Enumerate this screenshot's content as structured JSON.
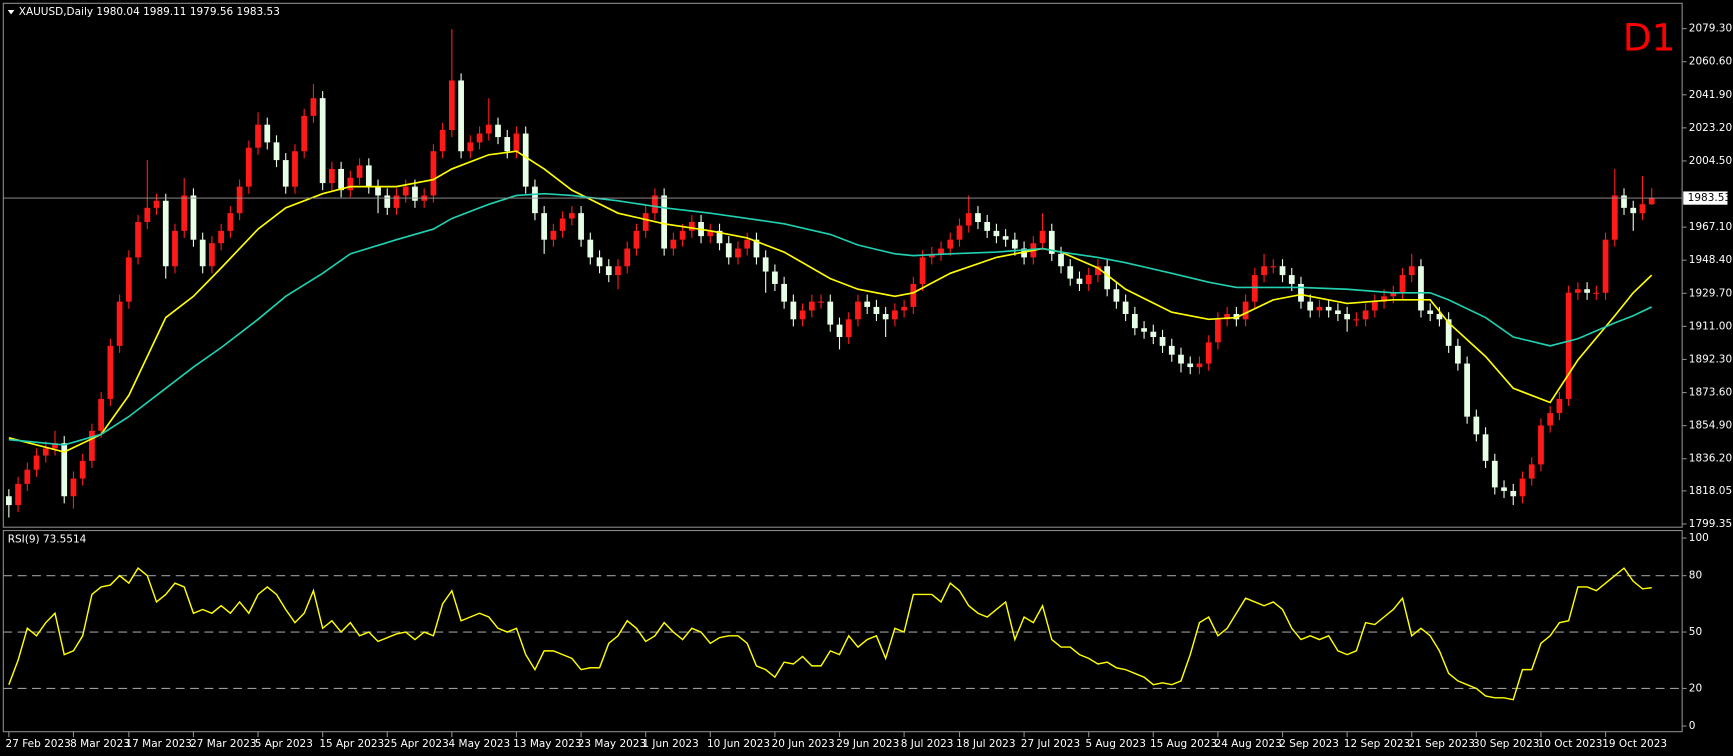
{
  "chart_data": [
    {
      "type": "candlestick",
      "title": "XAUUSD,Daily",
      "label": "D1",
      "up_color": "#ff1a1a",
      "down_color": "#e6ffe6",
      "open": [
        1815,
        1810,
        1822,
        1830,
        1838,
        1842,
        1845,
        1815,
        1825,
        1835,
        1852,
        1870,
        1900,
        1925,
        1950,
        1970,
        1978,
        1982,
        1945,
        1965,
        1985,
        1960,
        1945,
        1958,
        1965,
        1975,
        1990,
        2012,
        2025,
        2015,
        2005,
        1990,
        2010,
        2030,
        2040,
        1992,
        2000,
        1988,
        1995,
        2002,
        1990,
        1985,
        1978,
        1985,
        1990,
        1982,
        1985,
        2010,
        2022,
        2050,
        2010,
        2015,
        2020,
        2025,
        2018,
        2010,
        2020,
        1990,
        1975,
        1960,
        1965,
        1972,
        1975,
        1960,
        1950,
        1945,
        1940,
        1945,
        1955,
        1965,
        1975,
        1985,
        1955,
        1960,
        1965,
        1970,
        1962,
        1965,
        1958,
        1950,
        1955,
        1960,
        1950,
        1942,
        1935,
        1925,
        1915,
        1920,
        1925,
        1925,
        1912,
        1905,
        1915,
        1925,
        1922,
        1918,
        1915,
        1920,
        1922,
        1935,
        1950,
        1952,
        1955,
        1960,
        1968,
        1975,
        1970,
        1965,
        1962,
        1960,
        1955,
        1950,
        1958,
        1965,
        1952,
        1945,
        1938,
        1935,
        1940,
        1945,
        1932,
        1925,
        1918,
        1910,
        1908,
        1905,
        1900,
        1895,
        1890,
        1888,
        1890,
        1902,
        1915,
        1918,
        1915,
        1925,
        1940,
        1945,
        1945,
        1940,
        1935,
        1925,
        1920,
        1922,
        1920,
        1918,
        1915,
        1915,
        1920,
        1925,
        1928,
        1930,
        1940,
        1945,
        1920,
        1918,
        1915,
        1900,
        1890,
        1860,
        1850,
        1835,
        1820,
        1818,
        1815,
        1825,
        1833,
        1855,
        1862,
        1870,
        1930,
        1932,
        1930,
        1930,
        1960,
        1985,
        1978,
        1975,
        1980.04
      ],
      "high": [
        1819,
        1826,
        1834,
        1842,
        1846,
        1852,
        1849,
        1829,
        1839,
        1856,
        1874,
        1904,
        1929,
        1954,
        1974,
        2005,
        1986,
        1986,
        1969,
        1995,
        1989,
        1964,
        1962,
        1969,
        1979,
        1994,
        2016,
        2032,
        2029,
        2019,
        2009,
        2014,
        2034,
        2048,
        2044,
        2004,
        2004,
        1999,
        2006,
        2006,
        1994,
        1989,
        1989,
        1994,
        1994,
        1989,
        2014,
        2026,
        2079,
        2054,
        2019,
        2024,
        2040,
        2029,
        2022,
        2024,
        2024,
        1994,
        1979,
        1969,
        1976,
        1979,
        1979,
        1964,
        1954,
        1949,
        1949,
        1959,
        1969,
        1979,
        1989,
        1989,
        1964,
        1969,
        1974,
        1974,
        1969,
        1969,
        1962,
        1959,
        1964,
        1964,
        1954,
        1946,
        1939,
        1929,
        1924,
        1929,
        1929,
        1929,
        1916,
        1919,
        1929,
        1929,
        1926,
        1922,
        1924,
        1926,
        1939,
        1954,
        1956,
        1959,
        1964,
        1972,
        1985,
        1979,
        1974,
        1969,
        1966,
        1964,
        1959,
        1962,
        1975,
        1969,
        1956,
        1949,
        1942,
        1944,
        1949,
        1949,
        1936,
        1929,
        1922,
        1914,
        1912,
        1909,
        1904,
        1899,
        1894,
        1894,
        1906,
        1919,
        1922,
        1922,
        1929,
        1944,
        1952,
        1949,
        1949,
        1944,
        1939,
        1929,
        1926,
        1926,
        1924,
        1922,
        1919,
        1924,
        1929,
        1932,
        1934,
        1944,
        1952,
        1949,
        1924,
        1922,
        1919,
        1904,
        1894,
        1864,
        1854,
        1839,
        1824,
        1822,
        1829,
        1837,
        1859,
        1866,
        1874,
        1934,
        1936,
        1936,
        1934,
        1964,
        2000,
        1989,
        1982,
        1996,
        1989.11
      ],
      "low": [
        1803,
        1806,
        1818,
        1826,
        1834,
        1838,
        1811,
        1808,
        1821,
        1831,
        1848,
        1866,
        1896,
        1921,
        1946,
        1966,
        1974,
        1938,
        1941,
        1961,
        1956,
        1941,
        1941,
        1954,
        1961,
        1971,
        1986,
        2008,
        2011,
        2001,
        1986,
        1986,
        2006,
        2026,
        1988,
        1988,
        1984,
        1984,
        1991,
        1986,
        1975,
        1974,
        1974,
        1981,
        1978,
        1978,
        1981,
        2006,
        2018,
        2006,
        2006,
        2011,
        2016,
        2014,
        2006,
        2006,
        1986,
        1971,
        1952,
        1956,
        1961,
        1968,
        1956,
        1946,
        1941,
        1936,
        1932,
        1941,
        1951,
        1961,
        1971,
        1951,
        1951,
        1956,
        1961,
        1958,
        1958,
        1954,
        1946,
        1946,
        1951,
        1946,
        1930,
        1931,
        1921,
        1911,
        1911,
        1916,
        1921,
        1908,
        1898,
        1901,
        1911,
        1918,
        1914,
        1905,
        1911,
        1916,
        1918,
        1931,
        1946,
        1948,
        1951,
        1956,
        1964,
        1966,
        1961,
        1958,
        1956,
        1951,
        1946,
        1946,
        1954,
        1948,
        1941,
        1934,
        1931,
        1931,
        1936,
        1928,
        1921,
        1914,
        1906,
        1904,
        1901,
        1896,
        1891,
        1885,
        1884,
        1884,
        1886,
        1898,
        1911,
        1911,
        1911,
        1921,
        1936,
        1941,
        1936,
        1931,
        1921,
        1916,
        1916,
        1916,
        1914,
        1908,
        1911,
        1911,
        1916,
        1921,
        1924,
        1926,
        1936,
        1916,
        1914,
        1911,
        1896,
        1886,
        1856,
        1846,
        1831,
        1816,
        1814,
        1810,
        1811,
        1821,
        1829,
        1851,
        1858,
        1866,
        1926,
        1926,
        1926,
        1926,
        1956,
        1974,
        1965,
        1971,
        1979.56
      ],
      "close": [
        1810,
        1822,
        1830,
        1838,
        1842,
        1845,
        1815,
        1825,
        1835,
        1852,
        1870,
        1900,
        1925,
        1950,
        1970,
        1978,
        1982,
        1945,
        1965,
        1985,
        1960,
        1945,
        1958,
        1965,
        1975,
        1990,
        2012,
        2025,
        2015,
        2005,
        1990,
        2010,
        2030,
        2040,
        1992,
        2000,
        1988,
        1995,
        2002,
        1990,
        1985,
        1978,
        1985,
        1990,
        1982,
        1985,
        2010,
        2022,
        2050,
        2010,
        2015,
        2020,
        2025,
        2018,
        2010,
        2020,
        1990,
        1975,
        1960,
        1965,
        1972,
        1975,
        1960,
        1950,
        1945,
        1940,
        1945,
        1955,
        1965,
        1975,
        1985,
        1955,
        1960,
        1965,
        1970,
        1962,
        1965,
        1958,
        1950,
        1955,
        1960,
        1950,
        1942,
        1935,
        1925,
        1915,
        1920,
        1925,
        1925,
        1912,
        1905,
        1915,
        1925,
        1922,
        1918,
        1915,
        1920,
        1922,
        1935,
        1950,
        1952,
        1955,
        1960,
        1968,
        1975,
        1970,
        1965,
        1962,
        1960,
        1955,
        1950,
        1958,
        1965,
        1952,
        1945,
        1938,
        1935,
        1940,
        1945,
        1932,
        1925,
        1918,
        1910,
        1908,
        1905,
        1900,
        1895,
        1890,
        1888,
        1890,
        1902,
        1915,
        1918,
        1915,
        1925,
        1940,
        1945,
        1945,
        1940,
        1935,
        1925,
        1920,
        1922,
        1920,
        1918,
        1915,
        1915,
        1920,
        1925,
        1928,
        1930,
        1940,
        1945,
        1920,
        1918,
        1915,
        1900,
        1890,
        1860,
        1850,
        1835,
        1820,
        1818,
        1815,
        1825,
        1833,
        1855,
        1862,
        1870,
        1930,
        1932,
        1930,
        1930,
        1960,
        1985,
        1978,
        1975,
        1980.04,
        1983.53
      ],
      "series": [
        {
          "color": "#ffff00",
          "x": [
            0,
            6,
            10,
            13,
            17,
            20,
            23,
            27,
            30,
            34,
            37,
            42,
            46,
            48,
            52,
            55,
            58,
            61,
            66,
            71,
            76,
            80,
            84,
            89,
            92,
            96,
            98,
            102,
            107,
            112,
            114,
            118,
            121,
            126,
            130,
            133,
            137,
            140,
            145,
            150,
            154,
            156,
            160,
            163,
            167,
            170,
            174,
            176,
            178
          ],
          "values": [
            1848,
            1840,
            1850,
            1872,
            1916,
            1928,
            1944,
            1966,
            1978,
            1986,
            1990,
            1990,
            1994,
            2000,
            2008,
            2010,
            2000,
            1988,
            1975,
            1969,
            1965,
            1961,
            1953,
            1938,
            1932,
            1928,
            1930,
            1941,
            1950,
            1955,
            1953,
            1944,
            1932,
            1919,
            1915,
            1916,
            1926,
            1929,
            1924,
            1926,
            1926,
            1913,
            1894,
            1876,
            1868,
            1892,
            1917,
            1930,
            1940
          ]
        },
        {
          "color": "#20d0b0",
          "x": [
            0,
            6,
            10,
            13,
            17,
            20,
            23,
            27,
            30,
            34,
            37,
            42,
            46,
            48,
            52,
            55,
            58,
            61,
            66,
            71,
            76,
            80,
            84,
            89,
            92,
            96,
            98,
            102,
            107,
            112,
            114,
            118,
            121,
            126,
            130,
            133,
            137,
            140,
            145,
            150,
            154,
            156,
            160,
            163,
            167,
            170,
            174,
            176,
            178
          ],
          "values": [
            1847,
            1844,
            1850,
            1860,
            1876,
            1888,
            1899,
            1915,
            1928,
            1941,
            1952,
            1960,
            1966,
            1972,
            1980,
            1985,
            1986,
            1985,
            1982,
            1978,
            1975,
            1972,
            1969,
            1963,
            1957,
            1952,
            1951,
            1952,
            1953,
            1955,
            1953,
            1950,
            1947,
            1941,
            1936,
            1933,
            1933,
            1933,
            1932,
            1930,
            1930,
            1926,
            1916,
            1905,
            1900,
            1904,
            1913,
            1917,
            1922
          ]
        }
      ],
      "xlim": [
        -0.6,
        181.3
      ],
      "xticks": [
        {
          "value": 0,
          "label": "27 Feb 2023"
        },
        {
          "value": 7,
          "label": "8 Mar 2023"
        },
        {
          "value": 13,
          "label": "17 Mar 2023"
        },
        {
          "value": 20,
          "label": "27 Mar 2023"
        },
        {
          "value": 27,
          "label": "5 Apr 2023"
        },
        {
          "value": 34,
          "label": "15 Apr 2023"
        },
        {
          "value": 41,
          "label": "25 Apr 2023"
        },
        {
          "value": 48,
          "label": "4 May 2023"
        },
        {
          "value": 55,
          "label": "13 May 2023"
        },
        {
          "value": 62,
          "label": "23 May 2023"
        },
        {
          "value": 69,
          "label": "1 Jun 2023"
        },
        {
          "value": 76,
          "label": "10 Jun 2023"
        },
        {
          "value": 83,
          "label": "20 Jun 2023"
        },
        {
          "value": 90,
          "label": "29 Jun 2023"
        },
        {
          "value": 97,
          "label": "8 Jul 2023"
        },
        {
          "value": 103,
          "label": "18 Jul 2023"
        },
        {
          "value": 110,
          "label": "27 Jul 2023"
        },
        {
          "value": 117,
          "label": "5 Aug 2023"
        },
        {
          "value": 124,
          "label": "15 Aug 2023"
        },
        {
          "value": 131,
          "label": "24 Aug 2023"
        },
        {
          "value": 138,
          "label": "2 Sep 2023"
        },
        {
          "value": 145,
          "label": "12 Sep 2023"
        },
        {
          "value": 152,
          "label": "21 Sep 2023"
        },
        {
          "value": 159,
          "label": "30 Sep 2023"
        },
        {
          "value": 166,
          "label": "10 Oct 2023"
        },
        {
          "value": 173,
          "label": "19 Oct 2023"
        }
      ],
      "ylim": [
        1797.5,
        2093.6
      ],
      "yticks": [
        {
          "value": 2079.3,
          "label": "2079.30"
        },
        {
          "value": 2060.6,
          "label": "2060.60"
        },
        {
          "value": 2041.9,
          "label": "2041.90"
        },
        {
          "value": 2023.2,
          "label": "2023.20"
        },
        {
          "value": 2004.5,
          "label": "2004.50"
        },
        {
          "value": 1967.1,
          "label": "1967.10"
        },
        {
          "value": 1948.4,
          "label": "1948.40"
        },
        {
          "value": 1929.7,
          "label": "1929.70"
        },
        {
          "value": 1911,
          "label": "1911.00"
        },
        {
          "value": 1892.3,
          "label": "1892.30"
        },
        {
          "value": 1873.6,
          "label": "1873.60"
        },
        {
          "value": 1854.9,
          "label": "1854.90"
        },
        {
          "value": 1836.2,
          "label": "1836.20"
        },
        1818.05,
        1799.35
      ]
    },
    {
      "type": "line",
      "title": "RSI(9)",
      "color": "#ffff00",
      "values": [
        22,
        35,
        52,
        48,
        55,
        60,
        38,
        40,
        48,
        70,
        74,
        75,
        80,
        76,
        84,
        80,
        66,
        70,
        76,
        74,
        60,
        62,
        60,
        64,
        60,
        66,
        60,
        70,
        74,
        70,
        62,
        55,
        60,
        72,
        52,
        56,
        50,
        55,
        48,
        50,
        45,
        47,
        49,
        50,
        46,
        50,
        48,
        65,
        72,
        56,
        58,
        60,
        58,
        52,
        50,
        52,
        38,
        30,
        40,
        40,
        38,
        36,
        30,
        31,
        31,
        44,
        48,
        56,
        52,
        45,
        48,
        55,
        50,
        46,
        52,
        50,
        44,
        47,
        48,
        48,
        44,
        32,
        30,
        26,
        34,
        33,
        37,
        32,
        32,
        40,
        38,
        48,
        42,
        46,
        48,
        36,
        52,
        50,
        70,
        70,
        70,
        66,
        76,
        72,
        64,
        60,
        58,
        62,
        66,
        46,
        58,
        55,
        64,
        46,
        42,
        42,
        38,
        36,
        33,
        34,
        31,
        30,
        28,
        26,
        22,
        23,
        22,
        24,
        38,
        55,
        58,
        48,
        52,
        60,
        68,
        66,
        64,
        66,
        62,
        52,
        46,
        48,
        46,
        48,
        40,
        38,
        40,
        55,
        54,
        58,
        62,
        68,
        48,
        52,
        48,
        40,
        28,
        24,
        22,
        20,
        16,
        15,
        15,
        14,
        30,
        30,
        44,
        48,
        55,
        56,
        74,
        74,
        72,
        76,
        80,
        84,
        77,
        73,
        73.5514
      ],
      "ylim": [
        -3,
        104
      ],
      "yticks": [
        100,
        80,
        50,
        20,
        0
      ],
      "levels": [
        80,
        50,
        20
      ]
    }
  ]
}
